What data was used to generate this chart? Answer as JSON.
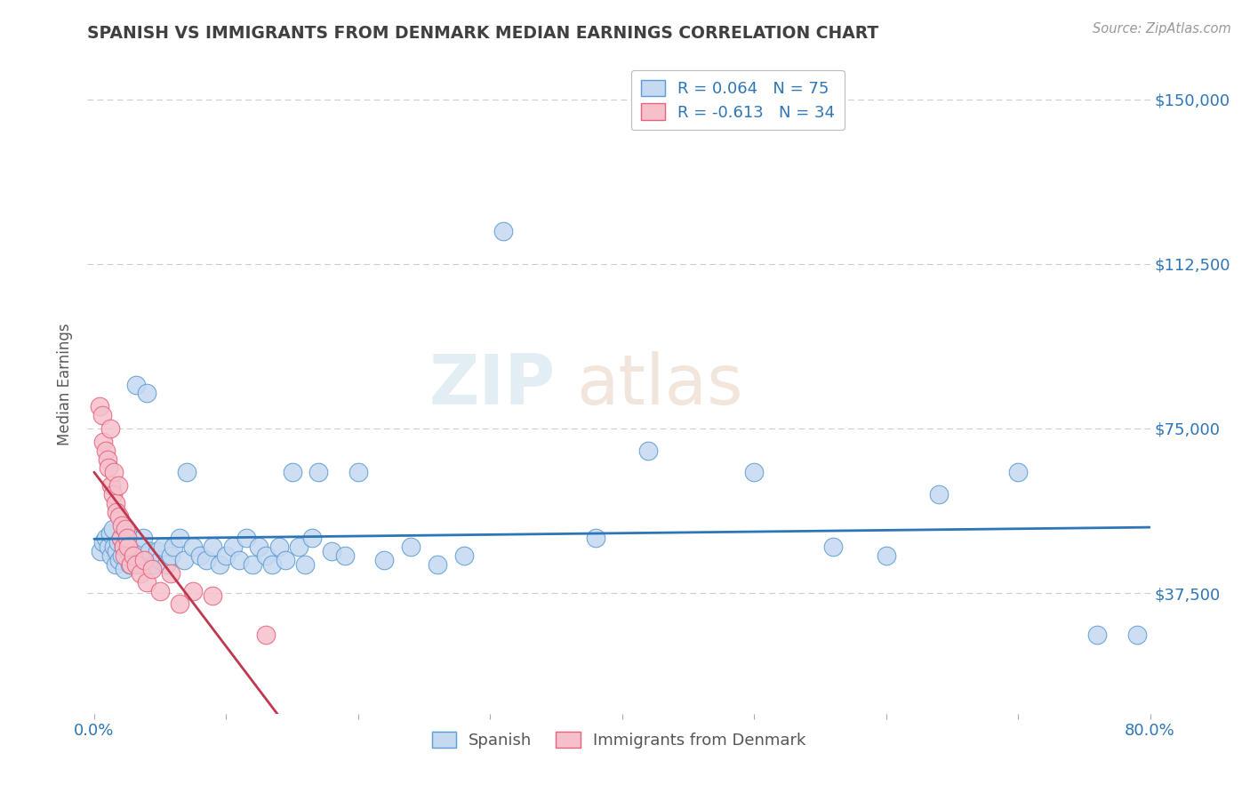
{
  "title": "SPANISH VS IMMIGRANTS FROM DENMARK MEDIAN EARNINGS CORRELATION CHART",
  "source": "Source: ZipAtlas.com",
  "ylabel": "Median Earnings",
  "xlim": [
    -0.005,
    0.8
  ],
  "ylim": [
    10000,
    160000
  ],
  "yticks": [
    37500,
    75000,
    112500,
    150000
  ],
  "ytick_labels": [
    "$37,500",
    "$75,000",
    "$112,500",
    "$150,000"
  ],
  "xticks": [
    0.0,
    0.1,
    0.2,
    0.3,
    0.4,
    0.5,
    0.6,
    0.7,
    0.8
  ],
  "xtick_labels": [
    "0.0%",
    "",
    "",
    "",
    "",
    "",
    "",
    "",
    "80.0%"
  ],
  "watermark_part1": "ZIP",
  "watermark_part2": "atlas",
  "spanish_color": "#c5d9f0",
  "denmark_color": "#f5c0cc",
  "spanish_edge_color": "#5b9bd5",
  "denmark_edge_color": "#e8607a",
  "spanish_line_color": "#2e75b6",
  "denmark_line_color": "#c0384f",
  "title_color": "#404040",
  "axis_label_color": "#595959",
  "tick_color": "#2e75b6",
  "grid_color": "#cccccc",
  "background_color": "#ffffff",
  "R_spanish": 0.064,
  "N_spanish": 75,
  "R_denmark": -0.613,
  "N_denmark": 34,
  "spanish_x": [
    0.005,
    0.007,
    0.009,
    0.011,
    0.012,
    0.013,
    0.014,
    0.015,
    0.016,
    0.017,
    0.018,
    0.019,
    0.02,
    0.021,
    0.022,
    0.023,
    0.025,
    0.026,
    0.027,
    0.028,
    0.03,
    0.032,
    0.033,
    0.035,
    0.037,
    0.038,
    0.04,
    0.042,
    0.045,
    0.048,
    0.05,
    0.052,
    0.055,
    0.058,
    0.06,
    0.065,
    0.068,
    0.07,
    0.075,
    0.08,
    0.085,
    0.09,
    0.095,
    0.1,
    0.105,
    0.11,
    0.115,
    0.12,
    0.125,
    0.13,
    0.135,
    0.14,
    0.145,
    0.15,
    0.155,
    0.16,
    0.165,
    0.17,
    0.18,
    0.19,
    0.2,
    0.22,
    0.24,
    0.26,
    0.28,
    0.31,
    0.38,
    0.42,
    0.5,
    0.56,
    0.6,
    0.64,
    0.7,
    0.76,
    0.79
  ],
  "spanish_y": [
    47000,
    49000,
    50000,
    48000,
    51000,
    46000,
    52000,
    48000,
    44000,
    47000,
    49000,
    45000,
    50000,
    46000,
    48000,
    43000,
    51000,
    47000,
    44000,
    49000,
    46000,
    85000,
    44000,
    48000,
    50000,
    45000,
    83000,
    47000,
    44000,
    47000,
    45000,
    48000,
    44000,
    46000,
    48000,
    50000,
    45000,
    65000,
    48000,
    46000,
    45000,
    48000,
    44000,
    46000,
    48000,
    45000,
    50000,
    44000,
    48000,
    46000,
    44000,
    48000,
    45000,
    65000,
    48000,
    44000,
    50000,
    65000,
    47000,
    46000,
    65000,
    45000,
    48000,
    44000,
    46000,
    120000,
    50000,
    70000,
    65000,
    48000,
    46000,
    60000,
    65000,
    28000,
    28000
  ],
  "denmark_x": [
    0.004,
    0.006,
    0.007,
    0.009,
    0.01,
    0.011,
    0.012,
    0.013,
    0.014,
    0.015,
    0.016,
    0.017,
    0.018,
    0.019,
    0.02,
    0.021,
    0.022,
    0.023,
    0.024,
    0.025,
    0.026,
    0.028,
    0.03,
    0.032,
    0.035,
    0.038,
    0.04,
    0.044,
    0.05,
    0.058,
    0.065,
    0.075,
    0.09,
    0.13
  ],
  "denmark_y": [
    80000,
    78000,
    72000,
    70000,
    68000,
    66000,
    75000,
    62000,
    60000,
    65000,
    58000,
    56000,
    62000,
    55000,
    50000,
    53000,
    48000,
    46000,
    52000,
    50000,
    48000,
    44000,
    46000,
    44000,
    42000,
    45000,
    40000,
    43000,
    38000,
    42000,
    35000,
    38000,
    37000,
    28000
  ]
}
